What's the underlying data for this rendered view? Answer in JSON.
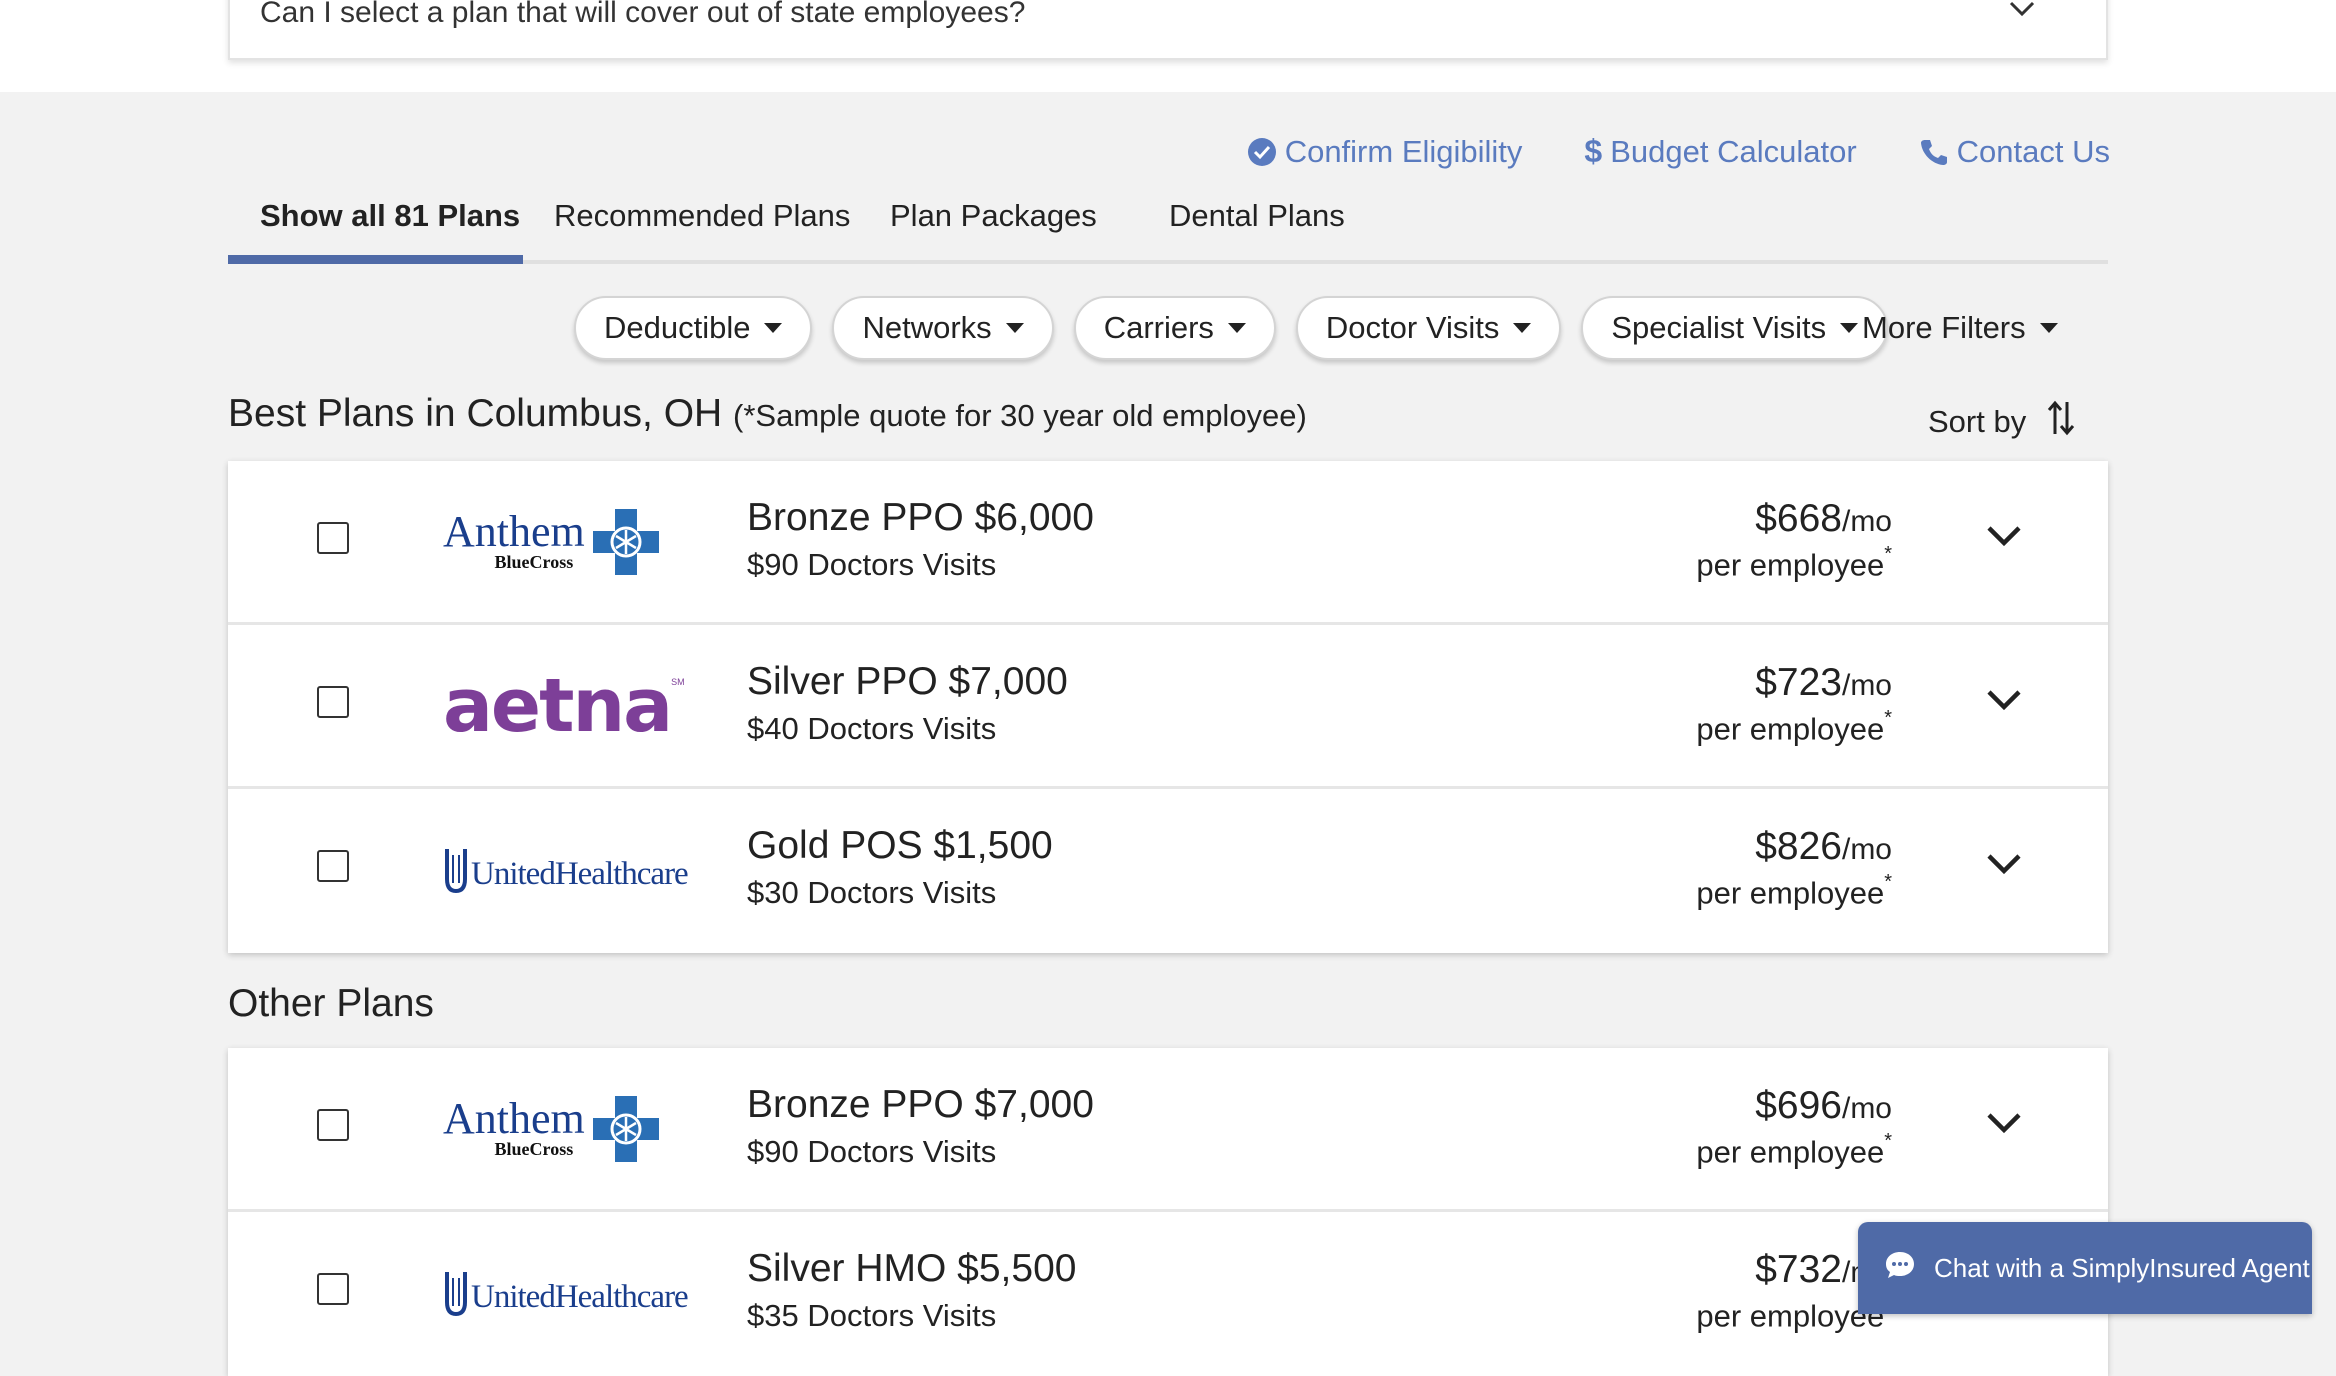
{
  "faq": {
    "question": "Can I select a plan that will cover out of state employees?"
  },
  "actions": [
    {
      "label": "Confirm Eligibility",
      "icon": "check-circle-icon"
    },
    {
      "label": "Budget Calculator",
      "icon": "dollar-icon"
    },
    {
      "label": "Contact Us",
      "icon": "phone-icon"
    }
  ],
  "tabs": [
    {
      "label": "Show all 81 Plans",
      "active": true
    },
    {
      "label": "Recommended Plans"
    },
    {
      "label": "Plan Packages"
    },
    {
      "label": "Dental Plans"
    }
  ],
  "filters": [
    "Deductible",
    "Networks",
    "Carriers",
    "Doctor Visits",
    "Specialist Visits"
  ],
  "more_filters": "More Filters",
  "best_section": {
    "title": "Best Plans in Columbus, OH",
    "subtitle": "(*Sample quote for 30 year old employee)"
  },
  "sort_by": "Sort by",
  "other_section": {
    "title": "Other Plans"
  },
  "best_plans": [
    {
      "carrier": "Anthem BlueCross",
      "name": "Bronze PPO $6,000",
      "visits": "$90 Doctors Visits",
      "price": "$668",
      "period": "/mo",
      "per": "per employee",
      "asterisk": "*"
    },
    {
      "carrier": "aetna",
      "name": "Silver PPO $7,000",
      "visits": "$40 Doctors Visits",
      "price": "$723",
      "period": "/mo",
      "per": "per employee",
      "asterisk": "*"
    },
    {
      "carrier": "UnitedHealthcare",
      "name": "Gold POS $1,500",
      "visits": "$30 Doctors Visits",
      "price": "$826",
      "period": "/mo",
      "per": "per employee",
      "asterisk": "*"
    }
  ],
  "other_plans": [
    {
      "carrier": "Anthem BlueCross",
      "name": "Bronze PPO $7,000",
      "visits": "$90 Doctors Visits",
      "price": "$696",
      "period": "/mo",
      "per": "per employee",
      "asterisk": "*"
    },
    {
      "carrier": "UnitedHealthcare",
      "name": "Silver HMO $5,500",
      "visits": "$35 Doctors Visits",
      "price": "$732",
      "period": "/mo",
      "per": "per employee",
      "asterisk": "*"
    }
  ],
  "logos": {
    "anthem_main": "Anthem",
    "anthem_sub": "BlueCross",
    "aetna": "aetna",
    "aetna_mark": "SM",
    "uhc": "UnitedHealthcare"
  },
  "chat": {
    "label": "Chat with a SimplyInsured Agent"
  },
  "colors": {
    "accent": "#4f6aa7",
    "link": "#5a7bbf",
    "aetna": "#7d3f98",
    "anthem": "#1a3e8c",
    "uhc": "#1a3e8c"
  }
}
